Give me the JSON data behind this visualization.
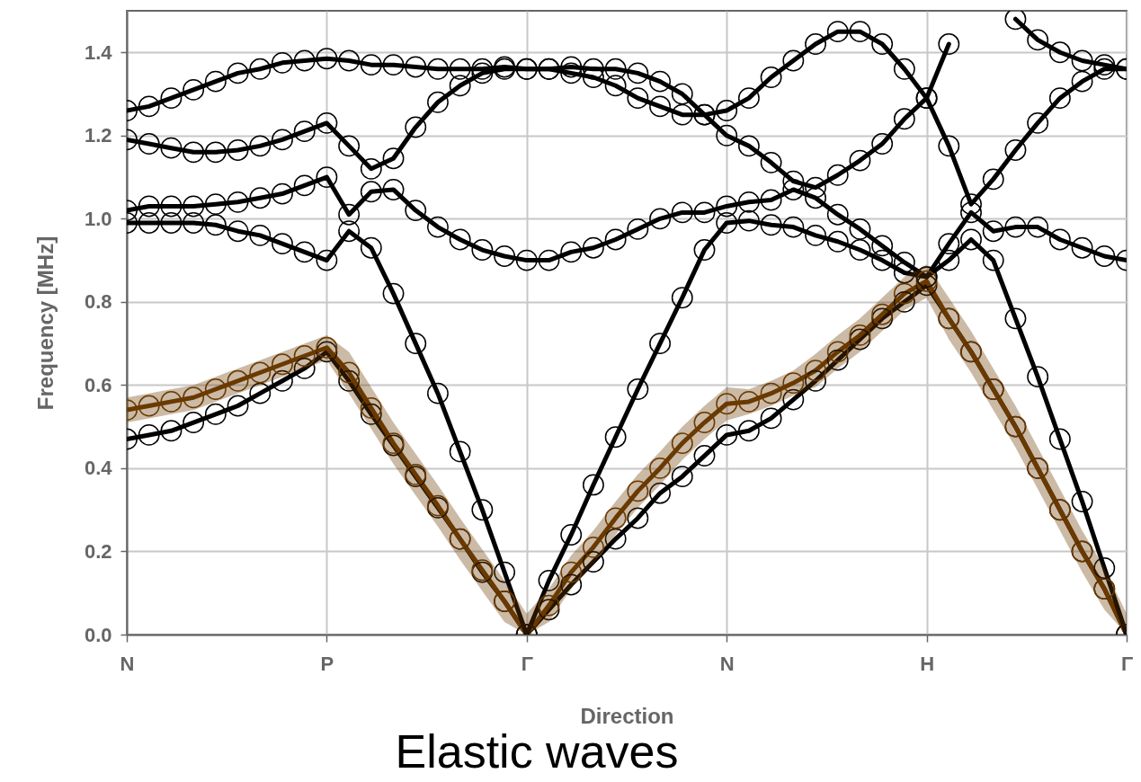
{
  "chart_data": {
    "type": "line",
    "title": "Elastic waves",
    "xlabel": "Direction",
    "ylabel": "Frequency [MHz]",
    "categories": [
      "N",
      null,
      null,
      null,
      null,
      null,
      null,
      null,
      null,
      "P",
      null,
      null,
      null,
      null,
      null,
      null,
      null,
      null,
      "Γ",
      null,
      null,
      null,
      null,
      null,
      null,
      null,
      null,
      "N",
      null,
      null,
      null,
      null,
      null,
      null,
      null,
      null,
      "H",
      null,
      null,
      null,
      null,
      null,
      null,
      null,
      null,
      "Γ"
    ],
    "series": [
      {
        "color": "#000000",
        "values": [
          0.47,
          0.48,
          0.49,
          0.51,
          0.53,
          0.55,
          0.58,
          0.61,
          0.64,
          0.68,
          0.61,
          0.53,
          0.455,
          0.38,
          0.305,
          0.23,
          0.15,
          0.08,
          0,
          0.06,
          0.12,
          0.175,
          0.23,
          0.28,
          0.34,
          0.38,
          0.43,
          0.48,
          0.49,
          0.52,
          0.565,
          0.61,
          0.66,
          0.71,
          0.76,
          0.8,
          0.84,
          0.76,
          0.68,
          0.59,
          0.5,
          0.4,
          0.3,
          0.2,
          0.11,
          0
        ]
      },
      {
        "color": "#6b3a00",
        "values": [
          0.54,
          0.55,
          0.56,
          0.57,
          0.59,
          0.61,
          0.63,
          0.65,
          0.67,
          0.69,
          0.63,
          0.545,
          0.46,
          0.385,
          0.31,
          0.23,
          0.155,
          0.08,
          0,
          0.07,
          0.15,
          0.21,
          0.28,
          0.345,
          0.4,
          0.46,
          0.51,
          0.555,
          0.56,
          0.58,
          0.605,
          0.635,
          0.68,
          0.72,
          0.77,
          0.82,
          0.85,
          0.76,
          0.68,
          0.59,
          0.5,
          0.4,
          0.3,
          0.2,
          0.11,
          0
        ],
        "lower": [
          0.51,
          0.52,
          0.53,
          0.54,
          0.56,
          0.58,
          0.6,
          0.62,
          0.64,
          0.66,
          0.58,
          0.495,
          0.41,
          0.335,
          0.26,
          0.18,
          0.105,
          0.03,
          0,
          0.03,
          0.11,
          0.17,
          0.24,
          0.305,
          0.36,
          0.42,
          0.47,
          0.515,
          0.53,
          0.55,
          0.575,
          0.595,
          0.64,
          0.68,
          0.73,
          0.78,
          0.81,
          0.71,
          0.63,
          0.54,
          0.45,
          0.35,
          0.25,
          0.15,
          0.06,
          0
        ],
        "upper": [
          0.57,
          0.58,
          0.59,
          0.6,
          0.62,
          0.64,
          0.66,
          0.68,
          0.7,
          0.72,
          0.68,
          0.595,
          0.51,
          0.435,
          0.36,
          0.28,
          0.205,
          0.13,
          0.05,
          0.11,
          0.19,
          0.25,
          0.32,
          0.385,
          0.44,
          0.5,
          0.55,
          0.595,
          0.59,
          0.61,
          0.635,
          0.675,
          0.72,
          0.76,
          0.81,
          0.86,
          0.89,
          0.81,
          0.73,
          0.64,
          0.55,
          0.45,
          0.35,
          0.25,
          0.16,
          0.05
        ]
      },
      {
        "color": "#000000",
        "values": [
          0.99,
          0.99,
          0.99,
          0.99,
          0.985,
          0.97,
          0.96,
          0.94,
          0.92,
          0.9,
          0.97,
          0.93,
          0.82,
          0.7,
          0.58,
          0.44,
          0.3,
          0.15,
          0,
          0.13,
          0.24,
          0.36,
          0.475,
          0.59,
          0.7,
          0.81,
          0.925,
          0.99,
          0.995,
          0.985,
          0.98,
          0.96,
          0.945,
          0.925,
          0.9,
          0.87,
          0.86,
          0.9,
          0.95,
          0.9,
          0.76,
          0.62,
          0.47,
          0.32,
          0.16,
          0
        ]
      },
      {
        "color": "#000000",
        "values": [
          1.02,
          1.03,
          1.03,
          1.03,
          1.035,
          1.04,
          1.05,
          1.06,
          1.08,
          1.1,
          1.01,
          1.065,
          1.07,
          1.02,
          0.98,
          0.95,
          0.925,
          0.91,
          0.9,
          0.9,
          0.92,
          0.93,
          0.95,
          0.975,
          1,
          1.015,
          1.015,
          1.03,
          1.04,
          1.045,
          1.07,
          1.05,
          1.01,
          0.975,
          0.935,
          0.895,
          0.86,
          0.94,
          1.015,
          0.97,
          0.98,
          0.98,
          0.95,
          0.93,
          0.91,
          0.9
        ]
      },
      {
        "color": "#000000",
        "values": [
          1.19,
          1.18,
          1.17,
          1.16,
          1.16,
          1.165,
          1.175,
          1.19,
          1.21,
          1.23,
          1.175,
          1.12,
          1.145,
          1.22,
          1.28,
          1.32,
          1.35,
          1.36,
          1.36,
          1.36,
          1.35,
          1.34,
          1.32,
          1.29,
          1.27,
          1.25,
          1.25,
          1.2,
          1.175,
          1.135,
          1.09,
          1.075,
          1.105,
          1.14,
          1.18,
          1.24,
          1.29,
          1.175,
          1.035,
          1.095,
          1.165,
          1.23,
          1.29,
          1.33,
          1.36,
          1.36
        ]
      },
      {
        "color": "#000000",
        "values": [
          1.26,
          1.27,
          1.29,
          1.31,
          1.33,
          1.35,
          1.36,
          1.375,
          1.38,
          1.385,
          1.38,
          1.37,
          1.37,
          1.365,
          1.36,
          1.36,
          1.36,
          1.365,
          1.36,
          1.36,
          1.365,
          1.36,
          1.36,
          1.35,
          1.33,
          1.3,
          1.25,
          1.26,
          1.29,
          1.34,
          1.38,
          1.42,
          1.45,
          1.45,
          1.42,
          1.36,
          1.29,
          1.42,
          null,
          null,
          1.48,
          1.43,
          1.4,
          1.38,
          1.37,
          1.36
        ]
      }
    ],
    "ylim": [
      0,
      1.5
    ],
    "yticks": [
      {
        "value": 0,
        "label": "0.0"
      },
      {
        "value": 0.2,
        "label": "0.2"
      },
      {
        "value": 0.4,
        "label": "0.4"
      },
      {
        "value": 0.6,
        "label": "0.6"
      },
      {
        "value": 0.8,
        "label": "0.8"
      },
      {
        "value": 1,
        "label": "1.0"
      },
      {
        "value": 1.2,
        "label": "1.2"
      },
      {
        "value": 1.4,
        "label": "1.4"
      }
    ],
    "grid": true,
    "marker": "circle"
  }
}
